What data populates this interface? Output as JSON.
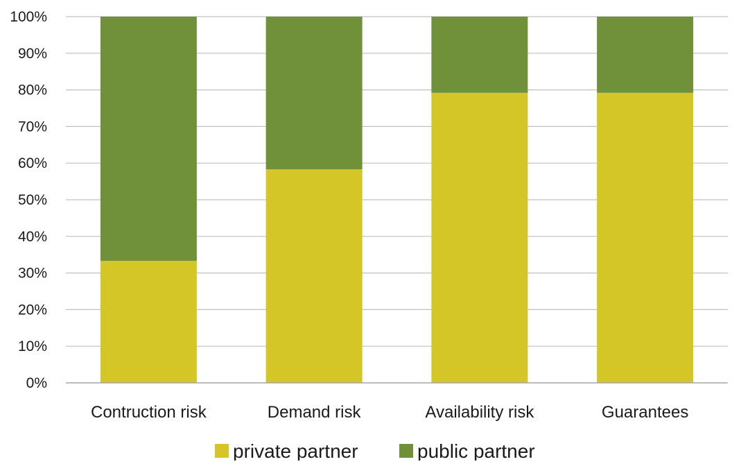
{
  "chart_data": {
    "type": "bar",
    "stacked": true,
    "categories": [
      "Contruction risk",
      "Demand risk",
      "Availability risk",
      "Guarantees"
    ],
    "series": [
      {
        "name": "private partner",
        "values": [
          33.3,
          58.3,
          79.2,
          79.2
        ],
        "color": "#d4c627"
      },
      {
        "name": "public partner",
        "values": [
          66.7,
          41.7,
          20.8,
          20.8
        ],
        "color": "#70903a"
      }
    ],
    "ylim": [
      0,
      100
    ],
    "yticks": [
      0,
      10,
      20,
      30,
      40,
      50,
      60,
      70,
      80,
      90,
      100
    ],
    "ytick_labels": [
      "0%",
      "10%",
      "20%",
      "30%",
      "40%",
      "50%",
      "60%",
      "70%",
      "80%",
      "90%",
      "100%"
    ],
    "title": "",
    "xlabel": "",
    "ylabel": "",
    "grid": true,
    "legend_position": "bottom"
  }
}
